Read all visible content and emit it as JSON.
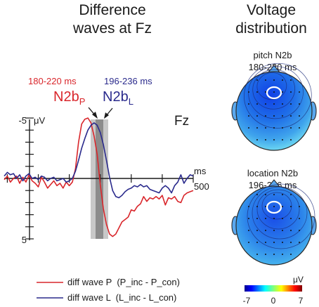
{
  "headings": {
    "left": [
      "Difference",
      "waves at Fz"
    ],
    "right": [
      "Voltage",
      "distribution"
    ]
  },
  "chart_data": [
    {
      "type": "line",
      "electrode": "Fz",
      "y_unit": "μV",
      "y_ticks": [
        "-5",
        "5"
      ],
      "x_unit": "ms",
      "x_tick": "500",
      "ylim": [
        5,
        -5
      ],
      "xlim": [
        -100,
        500
      ],
      "y_axis_inverted": true,
      "windows": [
        {
          "range_ms": [
            180,
            220
          ],
          "label": "180-220 ms",
          "component": "N2b",
          "subscript": "P",
          "color": "#d9262b"
        },
        {
          "range_ms": [
            196,
            236
          ],
          "label": "196-236 ms",
          "component": "N2b",
          "subscript": "L",
          "color": "#2a2a8c"
        }
      ],
      "series": [
        {
          "name": "diff wave P  (P_inc - P_con)",
          "color": "#d9262b",
          "x": [
            -110,
            -100,
            -90,
            -80,
            -70,
            -60,
            -50,
            -40,
            -30,
            -20,
            -10,
            0,
            10,
            20,
            30,
            40,
            50,
            60,
            70,
            80,
            90,
            100,
            110,
            120,
            130,
            140,
            150,
            160,
            170,
            180,
            190,
            200,
            210,
            220,
            230,
            240,
            250,
            260,
            270,
            280,
            290,
            300,
            310,
            320,
            330,
            340,
            350,
            360,
            370,
            380,
            390,
            400,
            410,
            420,
            430,
            440,
            450,
            460,
            470,
            480,
            490,
            500
          ],
          "values": [
            0.1,
            -0.2,
            0.3,
            0.0,
            -0.2,
            0.4,
            -0.1,
            0.3,
            -0.3,
            0.2,
            0.4,
            0.7,
            -0.1,
            0.3,
            0.8,
            0.5,
            0.2,
            0.6,
            0.4,
            0.8,
            0.3,
            0.6,
            0.3,
            -0.8,
            -3.0,
            -4.5,
            -4.9,
            -5.0,
            -4.6,
            -3.5,
            -2.0,
            0.5,
            2.5,
            3.8,
            4.6,
            4.8,
            4.6,
            4.1,
            3.6,
            3.4,
            3.2,
            2.6,
            2.7,
            2.3,
            2.1,
            1.5,
            1.9,
            1.6,
            1.7,
            1.5,
            1.7,
            1.4,
            2.2,
            1.6,
            1.7,
            1.5,
            1.9,
            2.0,
            1.4,
            1.2,
            1.1,
            1.0
          ]
        },
        {
          "name": "diff wave L  (L_inc - L_con)",
          "color": "#2a2a8c",
          "x": [
            -110,
            -100,
            -90,
            -80,
            -70,
            -60,
            -50,
            -40,
            -30,
            -20,
            -10,
            0,
            10,
            20,
            30,
            40,
            50,
            60,
            70,
            80,
            90,
            100,
            110,
            120,
            130,
            140,
            150,
            160,
            170,
            180,
            190,
            200,
            210,
            220,
            230,
            240,
            250,
            260,
            270,
            280,
            290,
            300,
            310,
            320,
            330,
            340,
            350,
            360,
            370,
            380,
            390,
            400,
            410,
            420,
            430,
            440,
            450,
            460,
            470,
            480,
            490,
            500
          ],
          "values": [
            -0.2,
            -0.5,
            -0.3,
            -0.4,
            0.0,
            -0.3,
            0.2,
            -0.2,
            -0.4,
            0.0,
            -0.1,
            0.1,
            -0.2,
            -0.1,
            0.2,
            0.0,
            -0.1,
            0.2,
            0.1,
            0.0,
            0.3,
            0.2,
            0.0,
            -0.6,
            -1.5,
            -2.5,
            -3.3,
            -4.0,
            -4.4,
            -4.6,
            -4.4,
            -3.8,
            -2.8,
            -1.5,
            -0.1,
            1.0,
            1.5,
            1.6,
            1.4,
            1.1,
            0.9,
            0.8,
            0.6,
            0.7,
            0.5,
            0.7,
            0.6,
            0.9,
            1.0,
            1.1,
            1.2,
            0.8,
            0.6,
            0.8,
            1.2,
            0.6,
            0.3,
            -0.3,
            0.4,
            0.0,
            -0.3,
            -0.2
          ]
        }
      ]
    },
    {
      "type": "heatmap",
      "title": [
        "pitch N2b",
        "180-220 ms"
      ],
      "min_value": -3.8
    },
    {
      "type": "heatmap",
      "title": [
        "location N2b",
        "196-236 ms"
      ],
      "min_value": -3.6
    },
    {
      "type": "colorbar",
      "unit": "μV",
      "ticks": [
        "-7",
        "0",
        "7"
      ],
      "range": [
        -7,
        7
      ]
    }
  ]
}
